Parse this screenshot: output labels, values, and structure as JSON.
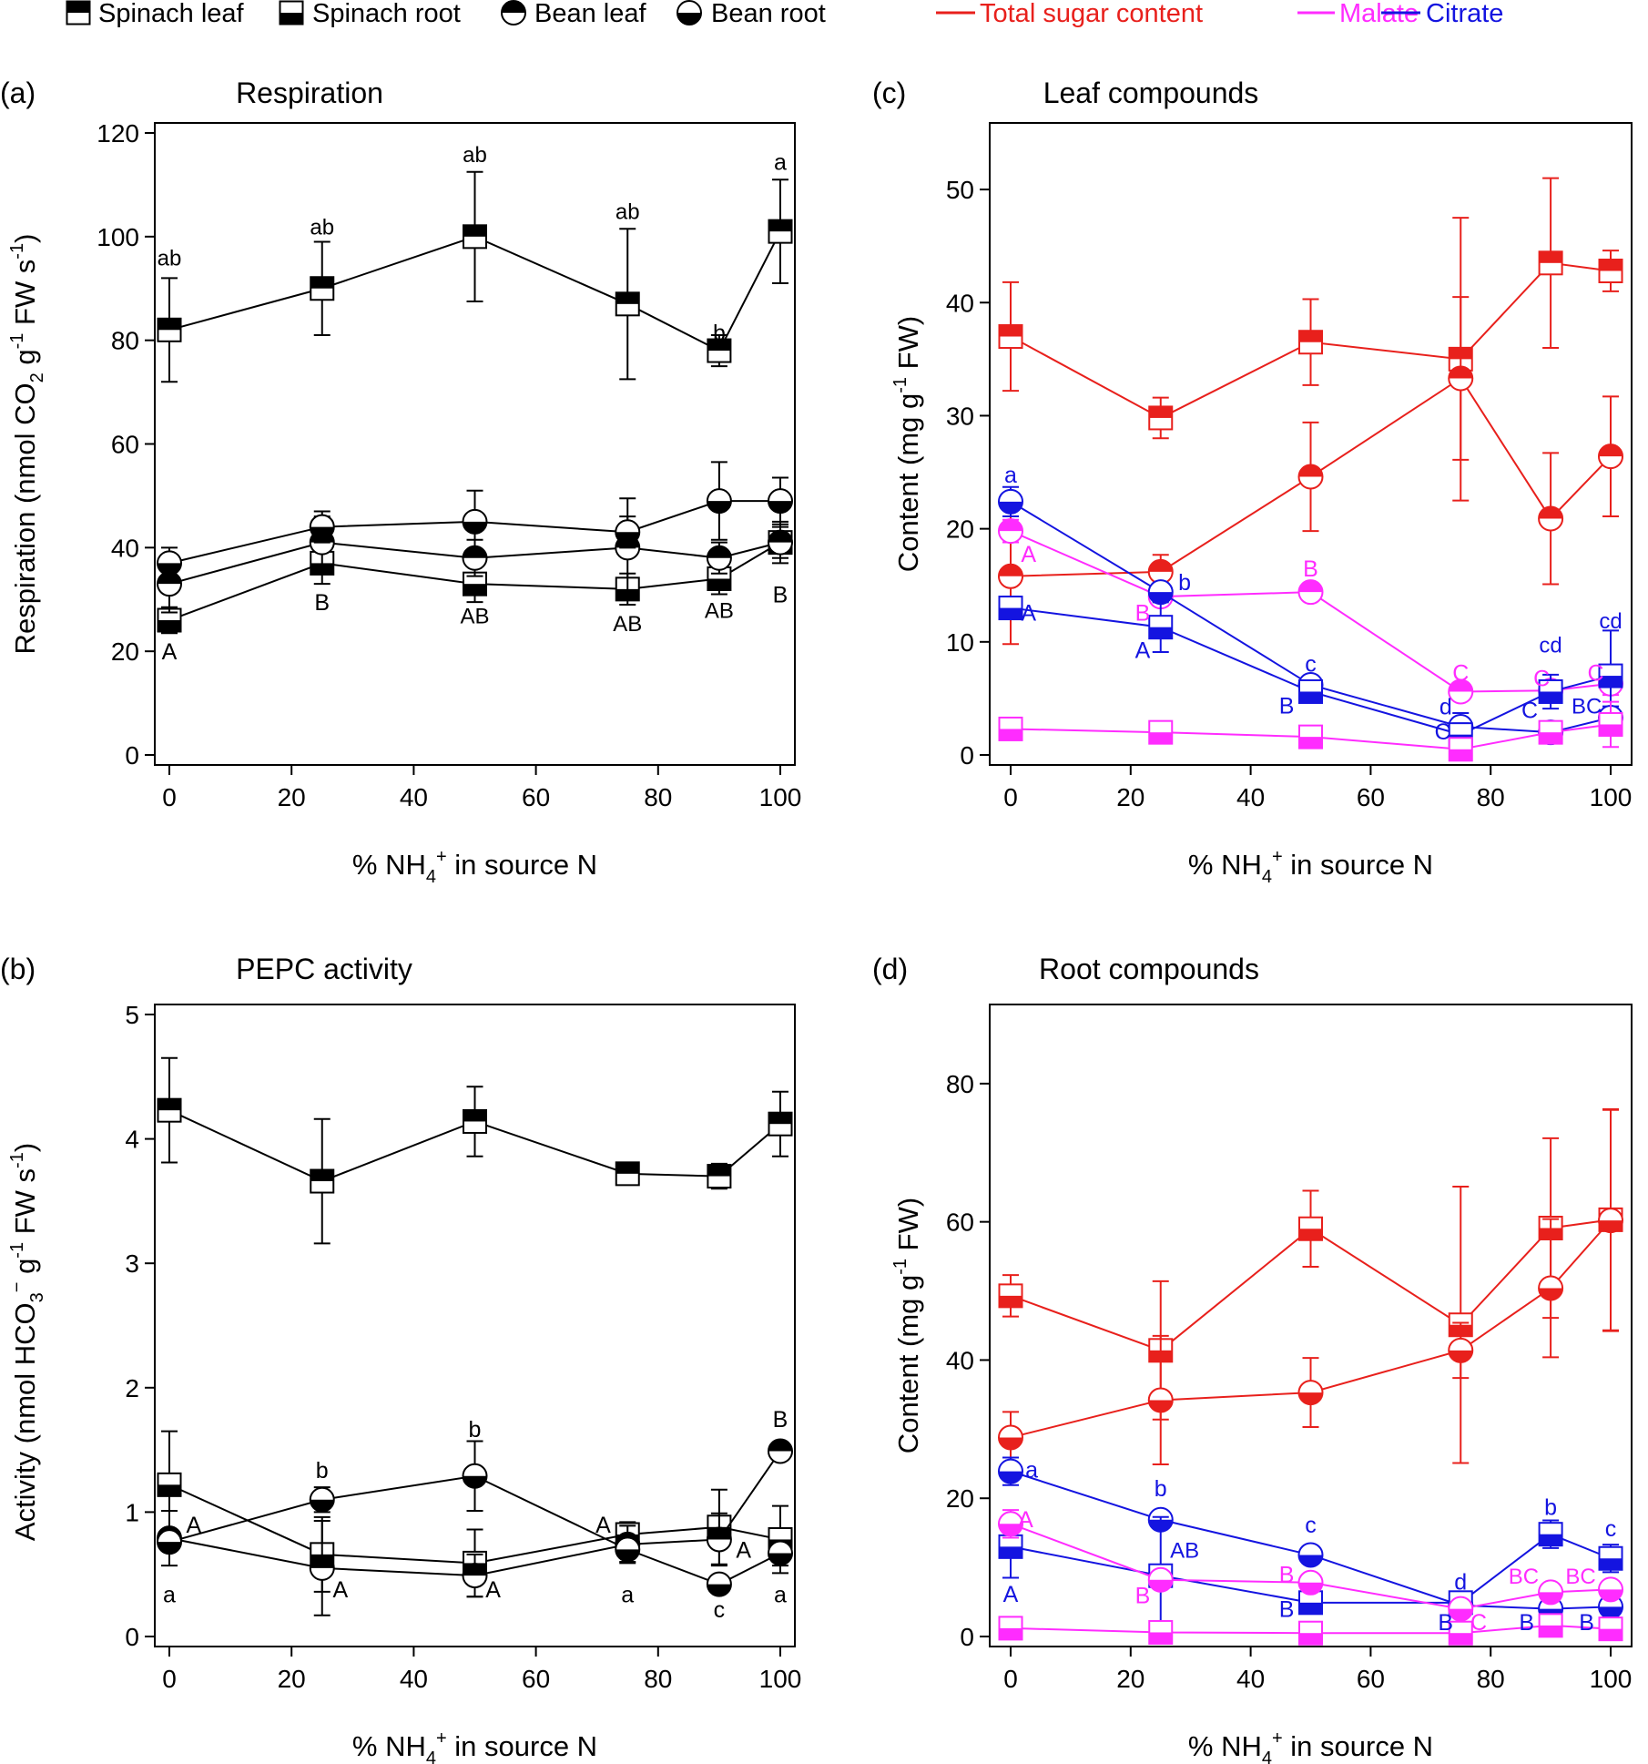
{
  "legend": {
    "markers": [
      {
        "label": "Spinach leaf",
        "symbol": "square",
        "fill": "top"
      },
      {
        "label": "Spinach root",
        "symbol": "square",
        "fill": "bottom"
      },
      {
        "label": "Bean leaf",
        "symbol": "circle",
        "fill": "top"
      },
      {
        "label": "Bean root",
        "symbol": "circle",
        "fill": "bottom"
      }
    ],
    "lines": [
      {
        "label": "Total sugar content",
        "color": "#e8201c"
      },
      {
        "label": "Malate",
        "color": "#ff2cff"
      },
      {
        "label": "Citrate",
        "color": "#1414e0"
      }
    ]
  },
  "chart_data": [
    {
      "panel": "(a)",
      "type": "line",
      "title": "Respiration",
      "xlabel": "% NH4+ in source N",
      "ylabel": "Respiration (nmol CO2 g-1 FW s-1)",
      "xlim": [
        0,
        100
      ],
      "ylim": [
        0,
        120
      ],
      "xticks": [
        0,
        20,
        40,
        60,
        80,
        100
      ],
      "yticks": [
        0,
        20,
        40,
        60,
        80,
        100,
        120
      ],
      "x": [
        0,
        25,
        50,
        75,
        90,
        100
      ],
      "series": [
        {
          "name": "Spinach leaf",
          "symbol": "square",
          "fill": "top",
          "color": "#000000",
          "values": [
            82,
            90,
            100,
            87,
            78,
            101
          ],
          "err": [
            10,
            9,
            12.5,
            14.5,
            3,
            10
          ]
        },
        {
          "name": "Spinach root",
          "symbol": "square",
          "fill": "bottom",
          "color": "#000000",
          "values": [
            26,
            37,
            33,
            32,
            34,
            41
          ],
          "err": [
            2.5,
            4,
            3.5,
            3,
            3,
            3
          ]
        },
        {
          "name": "Bean leaf",
          "symbol": "circle",
          "fill": "top",
          "color": "#000000",
          "values": [
            33,
            41,
            38,
            40,
            38,
            41
          ],
          "err": [
            5.5,
            5,
            3.5,
            9.5,
            3,
            4
          ]
        },
        {
          "name": "Bean root",
          "symbol": "circle",
          "fill": "bottom",
          "color": "#000000",
          "values": [
            37,
            44,
            45,
            43,
            49,
            49
          ],
          "err": [
            3,
            3,
            6,
            3,
            7.5,
            4.5
          ]
        }
      ],
      "annotations": [
        {
          "x": 0,
          "y": 96,
          "text": "ab",
          "color": "#000000"
        },
        {
          "x": 25,
          "y": 102,
          "text": "ab",
          "color": "#000000"
        },
        {
          "x": 50,
          "y": 116,
          "text": "ab",
          "color": "#000000"
        },
        {
          "x": 75,
          "y": 105,
          "text": "ab",
          "color": "#000000"
        },
        {
          "x": 90,
          "y": 81.5,
          "text": "b",
          "color": "#000000"
        },
        {
          "x": 100,
          "y": 114.5,
          "text": "a",
          "color": "#000000"
        },
        {
          "x": 0,
          "y": 20,
          "text": "A",
          "color": "#000000"
        },
        {
          "x": 25,
          "y": 29.5,
          "text": "B",
          "color": "#000000"
        },
        {
          "x": 50,
          "y": 27,
          "text": "AB",
          "color": "#000000"
        },
        {
          "x": 75,
          "y": 25.5,
          "text": "AB",
          "color": "#000000"
        },
        {
          "x": 90,
          "y": 28,
          "text": "AB",
          "color": "#000000"
        },
        {
          "x": 100,
          "y": 31,
          "text": "B",
          "color": "#000000"
        }
      ]
    },
    {
      "panel": "(b)",
      "type": "line",
      "title": "PEPC activity",
      "xlabel": "% NH4+ in source N",
      "ylabel": "Activity (nmol HCO3- g-1 FW s-1)",
      "xlim": [
        0,
        100
      ],
      "ylim": [
        0,
        5
      ],
      "xticks": [
        0,
        20,
        40,
        60,
        80,
        100
      ],
      "yticks": [
        0,
        1,
        2,
        3,
        4,
        5
      ],
      "x": [
        0,
        25,
        50,
        75,
        90,
        100
      ],
      "series": [
        {
          "name": "Spinach leaf",
          "symbol": "square",
          "fill": "top",
          "color": "#000000",
          "values": [
            4.23,
            3.66,
            4.14,
            3.72,
            3.7,
            4.12
          ],
          "err": [
            0.42,
            0.5,
            0.28,
            0.05,
            0.1,
            0.26
          ]
        },
        {
          "name": "Spinach root",
          "symbol": "square",
          "fill": "bottom",
          "color": "#000000",
          "values": [
            1.22,
            0.66,
            0.59,
            0.82,
            0.88,
            0.78
          ],
          "err": [
            0.43,
            0.3,
            0.27,
            0.1,
            0.3,
            0.27
          ]
        },
        {
          "name": "Bean leaf",
          "symbol": "circle",
          "fill": "top",
          "color": "#000000",
          "values": [
            0.79,
            0.55,
            0.49,
            0.74,
            0.78,
            1.49
          ],
          "err": [
            0.22,
            0.38,
            0.17,
            0.15,
            0.21,
            0.05
          ]
        },
        {
          "name": "Bean root",
          "symbol": "circle",
          "fill": "bottom",
          "color": "#000000",
          "values": [
            0.76,
            1.1,
            1.29,
            0.7,
            0.42,
            0.67
          ],
          "err": [
            0.05,
            0.1,
            0.28,
            0.1,
            0.05,
            0.1
          ]
        }
      ],
      "annotations": [
        {
          "x": 0,
          "y": 0.34,
          "text": "a",
          "color": "#000000"
        },
        {
          "x": 25,
          "y": 1.34,
          "text": "b",
          "color": "#000000"
        },
        {
          "x": 50,
          "y": 1.67,
          "text": "b",
          "color": "#000000"
        },
        {
          "x": 75,
          "y": 0.34,
          "text": "a",
          "color": "#000000"
        },
        {
          "x": 90,
          "y": 0.22,
          "text": "c",
          "color": "#000000"
        },
        {
          "x": 100,
          "y": 0.34,
          "text": "a",
          "color": "#000000"
        },
        {
          "x": 4,
          "y": 0.9,
          "text": "A",
          "color": "#000000"
        },
        {
          "x": 28,
          "y": 0.38,
          "text": "A",
          "color": "#000000"
        },
        {
          "x": 53,
          "y": 0.38,
          "text": "A",
          "color": "#000000"
        },
        {
          "x": 71,
          "y": 0.9,
          "text": "A",
          "color": "#000000"
        },
        {
          "x": 94,
          "y": 0.7,
          "text": "A",
          "color": "#000000"
        },
        {
          "x": 100,
          "y": 1.75,
          "text": "B",
          "color": "#000000"
        }
      ]
    },
    {
      "panel": "(c)",
      "type": "line",
      "title": "Leaf compounds",
      "xlabel": "% NH4+ in source N",
      "ylabel": "Content (mg g-1 FW)",
      "xlim": [
        0,
        100
      ],
      "ylim": [
        0,
        55
      ],
      "xticks": [
        0,
        20,
        40,
        60,
        80,
        100
      ],
      "yticks": [
        0,
        10,
        20,
        30,
        40,
        50
      ],
      "x": [
        0,
        25,
        50,
        75,
        90,
        100
      ],
      "series": [
        {
          "name": "Total sugar content",
          "group": "Spinach leaf",
          "symbol": "square",
          "fill": "top",
          "color": "#e8201c",
          "values": [
            37.0,
            29.8,
            36.5,
            35.0,
            43.5,
            42.8
          ],
          "err": [
            4.8,
            1.8,
            3.8,
            12.5,
            7.5,
            1.8
          ]
        },
        {
          "name": "Total sugar content",
          "group": "Bean leaf",
          "symbol": "circle",
          "fill": "top",
          "color": "#e8201c",
          "values": [
            15.8,
            16.2,
            24.6,
            33.3,
            20.9,
            26.4
          ],
          "err": [
            6,
            1.5,
            4.8,
            7.2,
            5.8,
            5.3
          ]
        },
        {
          "name": "Malate",
          "group": "Bean leaf",
          "symbol": "circle",
          "fill": "top",
          "color": "#ff2cff",
          "values": [
            19.8,
            14.0,
            14.4,
            5.6,
            5.7,
            6.3
          ],
          "err": [
            1,
            0.8,
            0.8,
            0.5,
            0.5,
            1
          ]
        },
        {
          "name": "Citrate",
          "group": "Bean leaf",
          "symbol": "circle",
          "fill": "bottom",
          "color": "#1414e0",
          "values": [
            22.4,
            14.4,
            6.2,
            2.5,
            2.0,
            3.3
          ],
          "err": [
            1.3,
            0.8,
            0.6,
            1.2,
            0.7,
            1
          ]
        },
        {
          "name": "Citrate",
          "group": "Spinach leaf",
          "symbol": "square",
          "fill": "bottom",
          "color": "#1414e0",
          "values": [
            13.0,
            11.3,
            5.6,
            1.8,
            5.6,
            7.0
          ],
          "err": [
            1,
            2.2,
            0.5,
            1,
            1.5,
            4
          ]
        },
        {
          "name": "Malate",
          "group": "Spinach leaf",
          "symbol": "square",
          "fill": "bottom",
          "color": "#ff2cff",
          "values": [
            2.3,
            2.0,
            1.6,
            0.5,
            2.0,
            2.7
          ],
          "err": [
            0.5,
            0.5,
            0.5,
            0.3,
            0.8,
            2
          ]
        }
      ],
      "annotations": [
        {
          "x": 0,
          "y": 24.8,
          "text": "a",
          "color": "#1414e0"
        },
        {
          "x": 29,
          "y": 15.3,
          "text": "b",
          "color": "#1414e0"
        },
        {
          "x": 50,
          "y": 8.1,
          "text": "c",
          "color": "#1414e0"
        },
        {
          "x": 72.5,
          "y": 4.3,
          "text": "d",
          "color": "#1414e0"
        },
        {
          "x": 90,
          "y": 9.8,
          "text": "cd",
          "color": "#1414e0"
        },
        {
          "x": 100,
          "y": 11.9,
          "text": "cd",
          "color": "#1414e0"
        },
        {
          "x": 3,
          "y": 12.6,
          "text": "A",
          "color": "#1414e0"
        },
        {
          "x": 22,
          "y": 9.3,
          "text": "A",
          "color": "#1414e0"
        },
        {
          "x": 46,
          "y": 4.4,
          "text": "B",
          "color": "#1414e0"
        },
        {
          "x": 72,
          "y": 2.1,
          "text": "C",
          "color": "#1414e0"
        },
        {
          "x": 86.5,
          "y": 4.0,
          "text": "C",
          "color": "#1414e0"
        },
        {
          "x": 96,
          "y": 4.4,
          "text": "BC",
          "color": "#1414e0"
        },
        {
          "x": 3,
          "y": 17.8,
          "text": "A",
          "color": "#ff2cff"
        },
        {
          "x": 22,
          "y": 12.6,
          "text": "B",
          "color": "#ff2cff"
        },
        {
          "x": 50,
          "y": 16.5,
          "text": "B",
          "color": "#ff2cff"
        },
        {
          "x": 75,
          "y": 7.3,
          "text": "C",
          "color": "#ff2cff"
        },
        {
          "x": 88.5,
          "y": 6.8,
          "text": "C",
          "color": "#ff2cff"
        },
        {
          "x": 97.5,
          "y": 7.3,
          "text": "C",
          "color": "#ff2cff"
        }
      ]
    },
    {
      "panel": "(d)",
      "type": "line",
      "title": "Root compounds",
      "xlabel": "% NH4+ in source N",
      "ylabel": "Content (mg g-1 FW)",
      "xlim": [
        0,
        100
      ],
      "ylim": [
        0,
        90
      ],
      "xticks": [
        0,
        20,
        40,
        60,
        80,
        100
      ],
      "yticks": [
        0,
        20,
        40,
        60,
        80
      ],
      "x": [
        0,
        25,
        50,
        75,
        90,
        100
      ],
      "series": [
        {
          "name": "Total sugar content",
          "group": "Spinach root",
          "symbol": "square",
          "fill": "bottom",
          "color": "#e8201c",
          "values": [
            49.3,
            41.4,
            59.0,
            45.1,
            59.1,
            60.3
          ],
          "err": [
            3,
            10,
            5.5,
            20,
            13,
            16
          ]
        },
        {
          "name": "Total sugar content",
          "group": "Bean root",
          "symbol": "circle",
          "fill": "bottom",
          "color": "#e8201c",
          "values": [
            28.8,
            34.2,
            35.3,
            41.4,
            50.4,
            60.2
          ],
          "err": [
            3.7,
            9.3,
            5,
            4,
            10,
            16
          ]
        },
        {
          "name": "Citrate",
          "group": "Bean root",
          "symbol": "circle",
          "fill": "bottom",
          "color": "#1414e0",
          "values": [
            23.9,
            16.9,
            11.8,
            4.5,
            4.0,
            4.3
          ],
          "err": [
            2,
            1,
            1,
            1,
            1.5,
            1.5
          ]
        },
        {
          "name": "Citrate",
          "group": "Spinach root",
          "symbol": "square",
          "fill": "bottom",
          "color": "#1414e0",
          "values": [
            13.0,
            8.8,
            4.9,
            4.9,
            14.8,
            11.3
          ],
          "err": [
            4.5,
            8.5,
            1.5,
            1,
            2,
            2
          ]
        },
        {
          "name": "Malate",
          "group": "Bean root",
          "symbol": "circle",
          "fill": "bottom",
          "color": "#ff2cff",
          "values": [
            16.3,
            8.2,
            7.8,
            4.0,
            6.4,
            6.8
          ],
          "err": [
            2,
            1,
            1,
            1,
            1,
            1
          ]
        },
        {
          "name": "Malate",
          "group": "Spinach root",
          "symbol": "square",
          "fill": "bottom",
          "color": "#ff2cff",
          "values": [
            1.2,
            0.6,
            0.5,
            0.5,
            1.6,
            1.1
          ],
          "err": [
            0.4,
            0.4,
            0.4,
            0.4,
            1,
            1
          ]
        }
      ],
      "annotations": [
        {
          "x": 3.5,
          "y": 24.2,
          "text": "a",
          "color": "#1414e0"
        },
        {
          "x": 25,
          "y": 21.5,
          "text": "b",
          "color": "#1414e0"
        },
        {
          "x": 50,
          "y": 16.2,
          "text": "c",
          "color": "#1414e0"
        },
        {
          "x": 75,
          "y": 8.0,
          "text": "d",
          "color": "#1414e0"
        },
        {
          "x": 90,
          "y": 18.8,
          "text": "b",
          "color": "#1414e0"
        },
        {
          "x": 100,
          "y": 15.7,
          "text": "c",
          "color": "#1414e0"
        },
        {
          "x": 0,
          "y": 6.2,
          "text": "A",
          "color": "#1414e0"
        },
        {
          "x": 29,
          "y": 12.6,
          "text": "AB",
          "color": "#1414e0"
        },
        {
          "x": 46,
          "y": 4.0,
          "text": "B",
          "color": "#1414e0"
        },
        {
          "x": 72.5,
          "y": 2.1,
          "text": "B",
          "color": "#1414e0"
        },
        {
          "x": 86,
          "y": 2.1,
          "text": "B",
          "color": "#1414e0"
        },
        {
          "x": 96,
          "y": 2.1,
          "text": "B",
          "color": "#1414e0"
        },
        {
          "x": 2.5,
          "y": 17.0,
          "text": "A",
          "color": "#ff2cff"
        },
        {
          "x": 22,
          "y": 6.0,
          "text": "B",
          "color": "#ff2cff"
        },
        {
          "x": 46,
          "y": 9.0,
          "text": "B",
          "color": "#ff2cff"
        },
        {
          "x": 78,
          "y": 2.1,
          "text": "C",
          "color": "#ff2cff"
        },
        {
          "x": 85.5,
          "y": 8.8,
          "text": "BC",
          "color": "#ff2cff"
        },
        {
          "x": 95,
          "y": 8.8,
          "text": "BC",
          "color": "#ff2cff"
        }
      ]
    }
  ]
}
